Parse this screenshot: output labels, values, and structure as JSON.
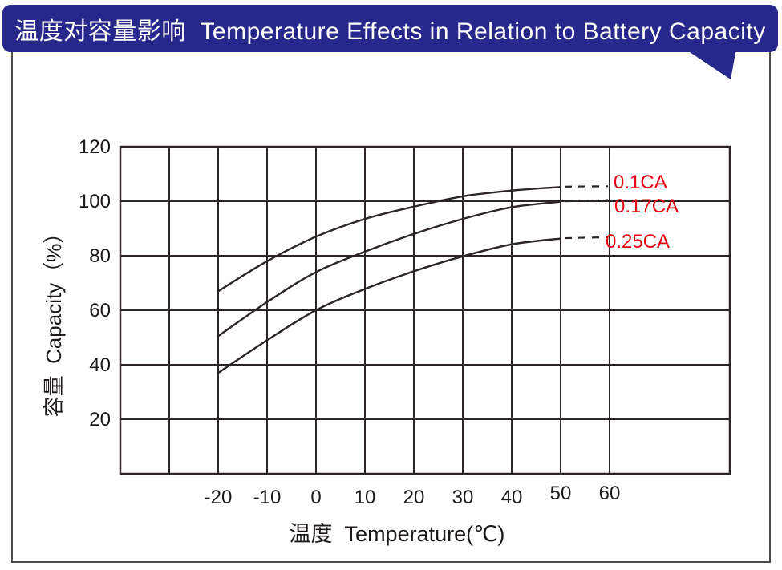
{
  "banner": {
    "title": "温度对容量影响  Temperature Effects in Relation to Battery Capacity",
    "bg_color": "#28288C",
    "text_color": "#ffffff"
  },
  "chart_data": {
    "type": "line",
    "title": "温度对容量影响 Temperature Effects in Relation to Battery Capacity",
    "xlabel": "温度  Temperature(℃)",
    "ylabel": "容量  Capacity（%）",
    "x": [
      -20,
      -10,
      0,
      10,
      20,
      30,
      40,
      50
    ],
    "series": [
      {
        "name": "0.1CA",
        "values": [
          67,
          78,
          87,
          93.5,
          98,
          101.8,
          103.9,
          105.2
        ],
        "dash_end_x": 60,
        "dash_end_value": 105.5
      },
      {
        "name": "0.17CA",
        "values": [
          50.5,
          63,
          74,
          81.5,
          88,
          93.5,
          97.8,
          99.8
        ],
        "dash_end_x": 60,
        "dash_end_value": 100.4
      },
      {
        "name": "0.25CA",
        "values": [
          37,
          49,
          60,
          67.8,
          74.3,
          79.8,
          84.2,
          86.3
        ],
        "dash_end_x": 60,
        "dash_end_value": 86.8
      }
    ],
    "x_ticks": [
      "-20",
      "-10",
      "0",
      "10",
      "20",
      "30",
      "40",
      "50",
      "60"
    ],
    "x_tick_values": [
      -20,
      -10,
      0,
      10,
      20,
      30,
      40,
      50,
      60
    ],
    "y_ticks": [
      "120",
      "100",
      "80",
      "60",
      "40",
      "20"
    ],
    "y_tick_values": [
      120,
      100,
      80,
      60,
      40,
      20
    ],
    "xlim": [
      -40,
      60
    ],
    "ylim": [
      0,
      120
    ],
    "grid": true,
    "line_color": "#2b2527",
    "label_color": "#e60012",
    "legend_position": "right-inside"
  }
}
